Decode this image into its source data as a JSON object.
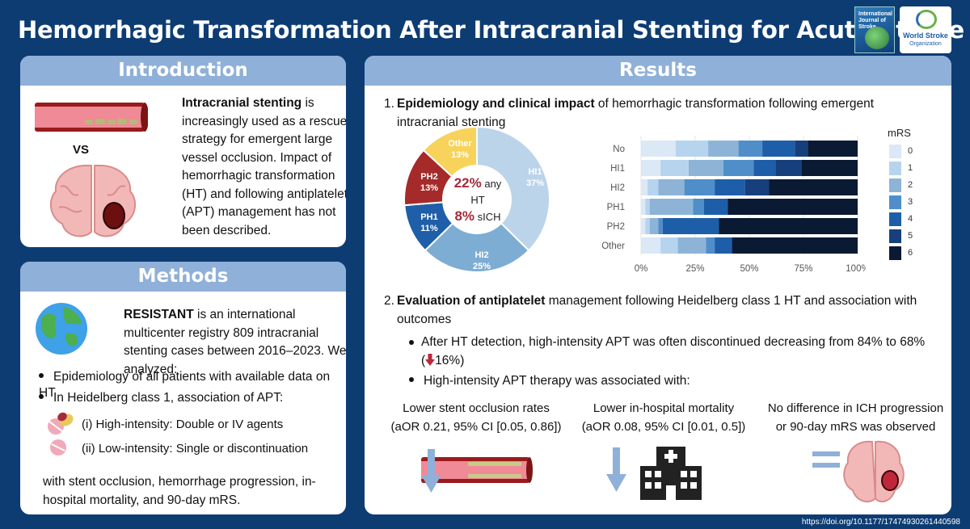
{
  "header": {
    "title": "Hemorrhagic Transformation After Intracranial Stenting for Acute Stroke",
    "journal_cover_text": "International Journal of Stroke",
    "wso_line1": "World Stroke",
    "wso_line2": "Organization"
  },
  "introduction": {
    "heading": "Introduction",
    "vs_label": "VS",
    "text_bold": "Intracranial stenting",
    "text_rest": " is increasingly used as a rescue strategy for emergent large vessel occlusion. Impact of hemorrhagic transformation (HT) and following antiplatelet (APT) management has not been described."
  },
  "methods": {
    "heading": "Methods",
    "text_bold": "RESISTANT",
    "text_rest": " is an international multicenter registry 809 intracranial stenting cases between 2016–2023. We analyzed:",
    "bullets": [
      "Epidemiology of all patients with available data on HT",
      "In Heidelberg class 1, association of APT:"
    ],
    "sub_items": [
      "(i) High-intensity: Double or IV agents",
      "(ii) Low-intensity: Single or discontinuation"
    ],
    "closing": "with stent occlusion, hemorrhage progression, in-hospital mortality, and 90-day mRS."
  },
  "results": {
    "heading": "Results",
    "section1_num": "1.",
    "section1_bold": "Epidemiology and clinical impact",
    "section1_rest": " of hemorrhagic transformation following emergent intracranial stenting",
    "section2_num": "2.",
    "section2_bold": "Evaluation of antiplatelet",
    "section2_rest": " management following Heidelberg class 1 HT and association with outcomes",
    "bullet1a": "After HT detection, high-intensity APT was often discontinued decreasing from 84% to 68%",
    "bullet1b_open": "(",
    "bullet1b_value": "16%)",
    "bullet2": "High-intensity APT therapy was associated with:",
    "outcomes": [
      {
        "line1": "Lower stent occlusion rates",
        "line2": "(aOR 0.21, 95% CI [0.05, 0.86])"
      },
      {
        "line1": "Lower in-hospital mortality",
        "line2": "(aOR 0.08, 95% CI [0.01, 0.5])"
      },
      {
        "line1": "No difference in ICH progression",
        "line2": "or 90-day mRS was observed"
      }
    ]
  },
  "donut": {
    "center_pct1": "22%",
    "center_text1a": "any",
    "center_text1b": "HT",
    "center_pct2": "8%",
    "center_text2": "sICH"
  },
  "chart_data": [
    {
      "type": "pie",
      "title": "",
      "slices": [
        {
          "label": "HI1",
          "value": 37,
          "text": "HI1\n37%",
          "color": "#bcd4ea"
        },
        {
          "label": "HI2",
          "value": 25,
          "text": "HI2\n25%",
          "color": "#7eadd4"
        },
        {
          "label": "PH1",
          "value": 11,
          "text": "PH1\n11%",
          "color": "#1f5ea8"
        },
        {
          "label": "PH2",
          "value": 13,
          "text": "PH2\n13%",
          "color": "#a52a2a"
        },
        {
          "label": "Other",
          "value": 13,
          "text": "Other\n13%",
          "color": "#f7d35c"
        }
      ]
    },
    {
      "type": "bar",
      "orientation": "horizontal",
      "stacked": true,
      "categories": [
        "No",
        "HI1",
        "HI2",
        "PH1",
        "PH2",
        "Other"
      ],
      "x_ticks": [
        "0%",
        "25%",
        "50%",
        "75%",
        "100%"
      ],
      "xlim": [
        0,
        100
      ],
      "legend_title": "mRS",
      "legend_position": "right",
      "series": [
        {
          "name": "0",
          "color": "#dbe8f5",
          "values": [
            16,
            9,
            3,
            2,
            2,
            9
          ]
        },
        {
          "name": "1",
          "color": "#b7d4ef",
          "values": [
            15,
            13,
            5,
            2,
            2,
            8
          ]
        },
        {
          "name": "2",
          "color": "#8db4d6",
          "values": [
            14,
            16,
            12,
            20,
            4,
            13
          ]
        },
        {
          "name": "3",
          "color": "#4f8ec9",
          "values": [
            11,
            14,
            14,
            5,
            2,
            4
          ]
        },
        {
          "name": "4",
          "color": "#1e5ea8",
          "values": [
            15,
            10,
            14,
            11,
            26,
            8
          ]
        },
        {
          "name": "5",
          "color": "#173f7c",
          "values": [
            6,
            12,
            11,
            0,
            0,
            0
          ]
        },
        {
          "name": "6",
          "color": "#0b1a33",
          "values": [
            23,
            26,
            41,
            60,
            64,
            58
          ]
        }
      ]
    }
  ],
  "footer": {
    "doi": "https://doi.org/10.1177/17474930261440598"
  }
}
